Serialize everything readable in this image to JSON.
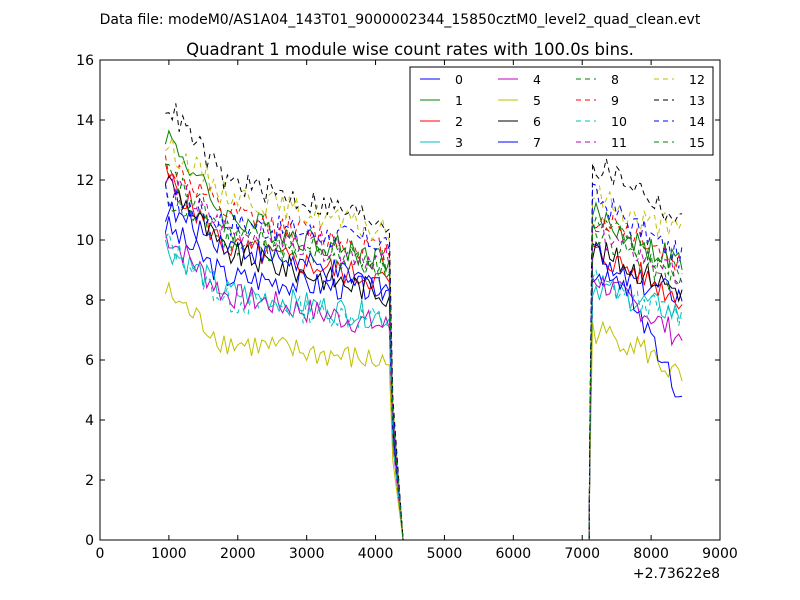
{
  "suptitle": "Data file: modeM0/AS1A04_143T01_9000002344_15850cztM0_level2_quad_clean.evt",
  "chart_data": {
    "type": "line",
    "title": "Quadrant 1 module wise count rates with 100.0s bins.",
    "xlabel": "",
    "ylabel": "",
    "x_offset_label": "+2.73622e8",
    "xlim": [
      0,
      9000
    ],
    "ylim": [
      0,
      16
    ],
    "x_ticks": [
      0,
      1000,
      2000,
      3000,
      4000,
      5000,
      6000,
      7000,
      8000,
      9000
    ],
    "y_ticks": [
      0,
      2,
      4,
      6,
      8,
      10,
      12,
      14,
      16
    ],
    "grid": false,
    "legend_position": "top-right",
    "legend_columns": 4,
    "gap_x": [
      4400,
      7100
    ],
    "series": [
      {
        "name": "0",
        "color": "#0000ff",
        "dash": "solid",
        "seg1_start": [
          950,
          10.5
        ],
        "seg1_mid": [
          1800,
          8.8
        ],
        "seg1_end": [
          4200,
          8.3
        ],
        "seg2_start": [
          7150,
          9.0
        ],
        "seg2_mid": [
          7800,
          8.6
        ],
        "seg2_end": [
          8450,
          8.2
        ]
      },
      {
        "name": "1",
        "color": "#008000",
        "dash": "solid",
        "seg1_start": [
          950,
          13.6
        ],
        "seg1_mid": [
          1800,
          10.8
        ],
        "seg1_end": [
          4200,
          9.3
        ],
        "seg2_start": [
          7150,
          10.9
        ],
        "seg2_mid": [
          7800,
          9.9
        ],
        "seg2_end": [
          8450,
          9.2
        ]
      },
      {
        "name": "2",
        "color": "#ff0000",
        "dash": "solid",
        "seg1_start": [
          950,
          12.2
        ],
        "seg1_mid": [
          1800,
          9.8
        ],
        "seg1_end": [
          4200,
          8.6
        ],
        "seg2_start": [
          7150,
          9.6
        ],
        "seg2_mid": [
          7800,
          8.9
        ],
        "seg2_end": [
          8450,
          8.0
        ]
      },
      {
        "name": "3",
        "color": "#00bfbf",
        "dash": "solid",
        "seg1_start": [
          950,
          9.8
        ],
        "seg1_mid": [
          1800,
          8.3
        ],
        "seg1_end": [
          4200,
          7.4
        ],
        "seg2_start": [
          7150,
          8.5
        ],
        "seg2_mid": [
          7800,
          8.0
        ],
        "seg2_end": [
          8450,
          7.5
        ]
      },
      {
        "name": "4",
        "color": "#bf00bf",
        "dash": "solid",
        "seg1_start": [
          950,
          10.2
        ],
        "seg1_mid": [
          1800,
          8.2
        ],
        "seg1_end": [
          4200,
          7.1
        ],
        "seg2_start": [
          7150,
          8.8
        ],
        "seg2_mid": [
          7800,
          7.8
        ],
        "seg2_end": [
          8450,
          6.7
        ]
      },
      {
        "name": "5",
        "color": "#bfbf00",
        "dash": "solid",
        "seg1_start": [
          950,
          8.3
        ],
        "seg1_mid": [
          1800,
          6.6
        ],
        "seg1_end": [
          4200,
          5.9
        ],
        "seg2_start": [
          7150,
          7.0
        ],
        "seg2_mid": [
          7800,
          6.5
        ],
        "seg2_end": [
          8450,
          5.3
        ]
      },
      {
        "name": "6",
        "color": "#000000",
        "dash": "solid",
        "seg1_start": [
          950,
          12.1
        ],
        "seg1_mid": [
          1800,
          9.6
        ],
        "seg1_end": [
          4200,
          8.2
        ],
        "seg2_start": [
          7150,
          9.7
        ],
        "seg2_mid": [
          7800,
          9.0
        ],
        "seg2_end": [
          8450,
          8.3
        ]
      },
      {
        "name": "7",
        "color": "#0000ff",
        "dash": "solid",
        "seg1_start": [
          950,
          11.0
        ],
        "seg1_mid": [
          1800,
          9.9
        ],
        "seg1_end": [
          4200,
          8.4
        ],
        "seg2_start": [
          7150,
          9.9
        ],
        "seg2_mid": [
          7800,
          7.8
        ],
        "seg2_end": [
          8450,
          4.7
        ]
      },
      {
        "name": "8",
        "color": "#008000",
        "dash": "dashed",
        "seg1_start": [
          950,
          11.5
        ],
        "seg1_mid": [
          1800,
          10.0
        ],
        "seg1_end": [
          4200,
          9.0
        ],
        "seg2_start": [
          7150,
          10.4
        ],
        "seg2_mid": [
          7800,
          9.4
        ],
        "seg2_end": [
          8450,
          8.4
        ]
      },
      {
        "name": "9",
        "color": "#ff0000",
        "dash": "dashed",
        "seg1_start": [
          950,
          12.6
        ],
        "seg1_mid": [
          1800,
          10.9
        ],
        "seg1_end": [
          4200,
          9.6
        ],
        "seg2_start": [
          7150,
          10.8
        ],
        "seg2_mid": [
          7800,
          10.2
        ],
        "seg2_end": [
          8450,
          9.1
        ]
      },
      {
        "name": "10",
        "color": "#00bfbf",
        "dash": "dashed",
        "seg1_start": [
          950,
          10.0
        ],
        "seg1_mid": [
          1800,
          8.0
        ],
        "seg1_end": [
          4200,
          7.3
        ],
        "seg2_start": [
          7150,
          8.7
        ],
        "seg2_mid": [
          7800,
          7.9
        ],
        "seg2_end": [
          8450,
          7.5
        ]
      },
      {
        "name": "11",
        "color": "#bf00bf",
        "dash": "dashed",
        "seg1_start": [
          950,
          12.0
        ],
        "seg1_mid": [
          1800,
          10.4
        ],
        "seg1_end": [
          4200,
          9.3
        ],
        "seg2_start": [
          7150,
          10.2
        ],
        "seg2_mid": [
          7800,
          9.6
        ],
        "seg2_end": [
          8450,
          8.6
        ]
      },
      {
        "name": "12",
        "color": "#bfbf00",
        "dash": "dashed",
        "seg1_start": [
          950,
          13.2
        ],
        "seg1_mid": [
          1800,
          11.6
        ],
        "seg1_end": [
          4200,
          10.2
        ],
        "seg2_start": [
          7150,
          11.6
        ],
        "seg2_mid": [
          7800,
          10.7
        ],
        "seg2_end": [
          8450,
          10.3
        ]
      },
      {
        "name": "13",
        "color": "#000000",
        "dash": "dashed",
        "seg1_start": [
          950,
          14.6
        ],
        "seg1_mid": [
          1800,
          12.0
        ],
        "seg1_end": [
          4200,
          10.6
        ],
        "seg2_start": [
          7150,
          12.5
        ],
        "seg2_mid": [
          7800,
          11.8
        ],
        "seg2_end": [
          8450,
          10.5
        ]
      },
      {
        "name": "14",
        "color": "#0000ff",
        "dash": "dashed",
        "seg1_start": [
          950,
          11.5
        ],
        "seg1_mid": [
          1800,
          10.6
        ],
        "seg1_end": [
          4200,
          9.9
        ],
        "seg2_start": [
          7150,
          11.5
        ],
        "seg2_mid": [
          7800,
          10.4
        ],
        "seg2_end": [
          8450,
          9.4
        ]
      },
      {
        "name": "15",
        "color": "#008000",
        "dash": "dashed",
        "seg1_start": [
          950,
          12.3
        ],
        "seg1_mid": [
          1800,
          10.3
        ],
        "seg1_end": [
          4200,
          9.2
        ],
        "seg2_start": [
          7150,
          10.6
        ],
        "seg2_mid": [
          7800,
          9.8
        ],
        "seg2_end": [
          8450,
          9.0
        ]
      }
    ]
  }
}
